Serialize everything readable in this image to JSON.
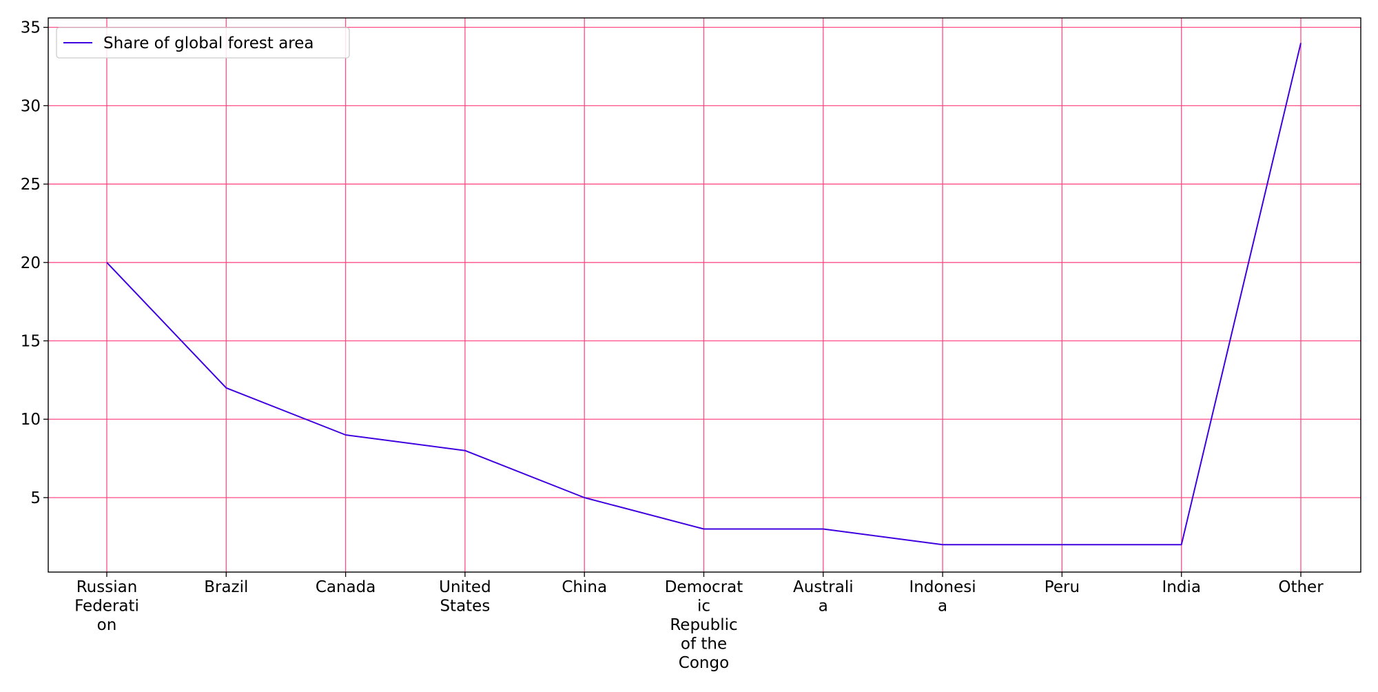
{
  "chart_data": {
    "type": "line",
    "categories": [
      [
        "Russian",
        "Federati",
        "on"
      ],
      [
        "Brazil"
      ],
      [
        "Canada"
      ],
      [
        "United",
        "States"
      ],
      [
        "China"
      ],
      [
        "Democrat",
        "ic",
        "Republic",
        "of the",
        "Congo"
      ],
      [
        "Australi",
        "a"
      ],
      [
        "Indonesi",
        "a"
      ],
      [
        "Peru"
      ],
      [
        "India"
      ],
      [
        "Other"
      ]
    ],
    "series": [
      {
        "name": "Share of global forest area",
        "values": [
          20,
          12,
          9,
          8,
          5,
          3,
          3,
          2,
          2,
          2,
          34
        ],
        "color": "#3f00e0"
      }
    ],
    "yticks": [
      5,
      10,
      15,
      20,
      25,
      30,
      35
    ],
    "ylim": [
      0.25,
      35.6
    ],
    "grid": true,
    "grid_color": "#ff4c84",
    "legend_position": "top-left",
    "title": "",
    "xlabel": "",
    "ylabel": ""
  }
}
